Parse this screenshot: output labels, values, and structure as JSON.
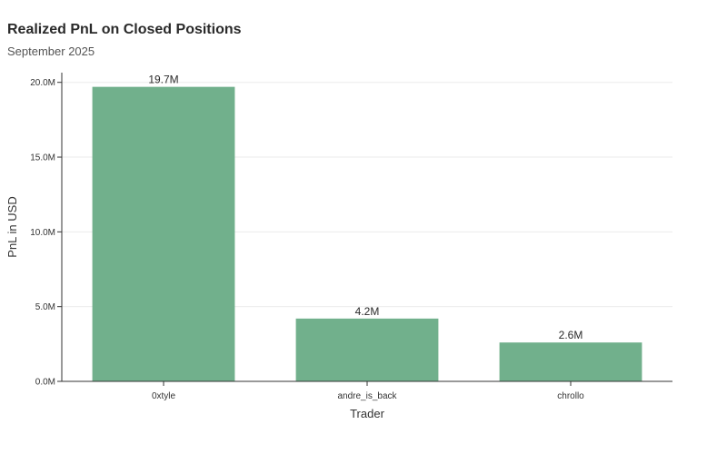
{
  "header": {
    "title": "Realized PnL on Closed Positions",
    "subtitle": "September 2025"
  },
  "colors": {
    "bar": "#71b08c",
    "grid": "#ebebeb",
    "axis": "#333333"
  },
  "chart_data": {
    "type": "bar",
    "title": "Realized PnL on Closed Positions",
    "subtitle": "September 2025",
    "xlabel": "Trader",
    "ylabel": "PnL in USD",
    "categories": [
      "0xtyle",
      "andre_is_back",
      "chrollo"
    ],
    "values": [
      19700000,
      4200000,
      2600000
    ],
    "data_labels": [
      "19.7M",
      "4.2M",
      "2.6M"
    ],
    "ylim": [
      0,
      20650000
    ],
    "yticks": [
      0,
      5000000,
      10000000,
      15000000,
      20000000
    ],
    "ytick_labels": [
      "0.0M",
      "5.0M",
      "10.0M",
      "15.0M",
      "20.0M"
    ],
    "grid": "horizontal",
    "legend": "none"
  }
}
